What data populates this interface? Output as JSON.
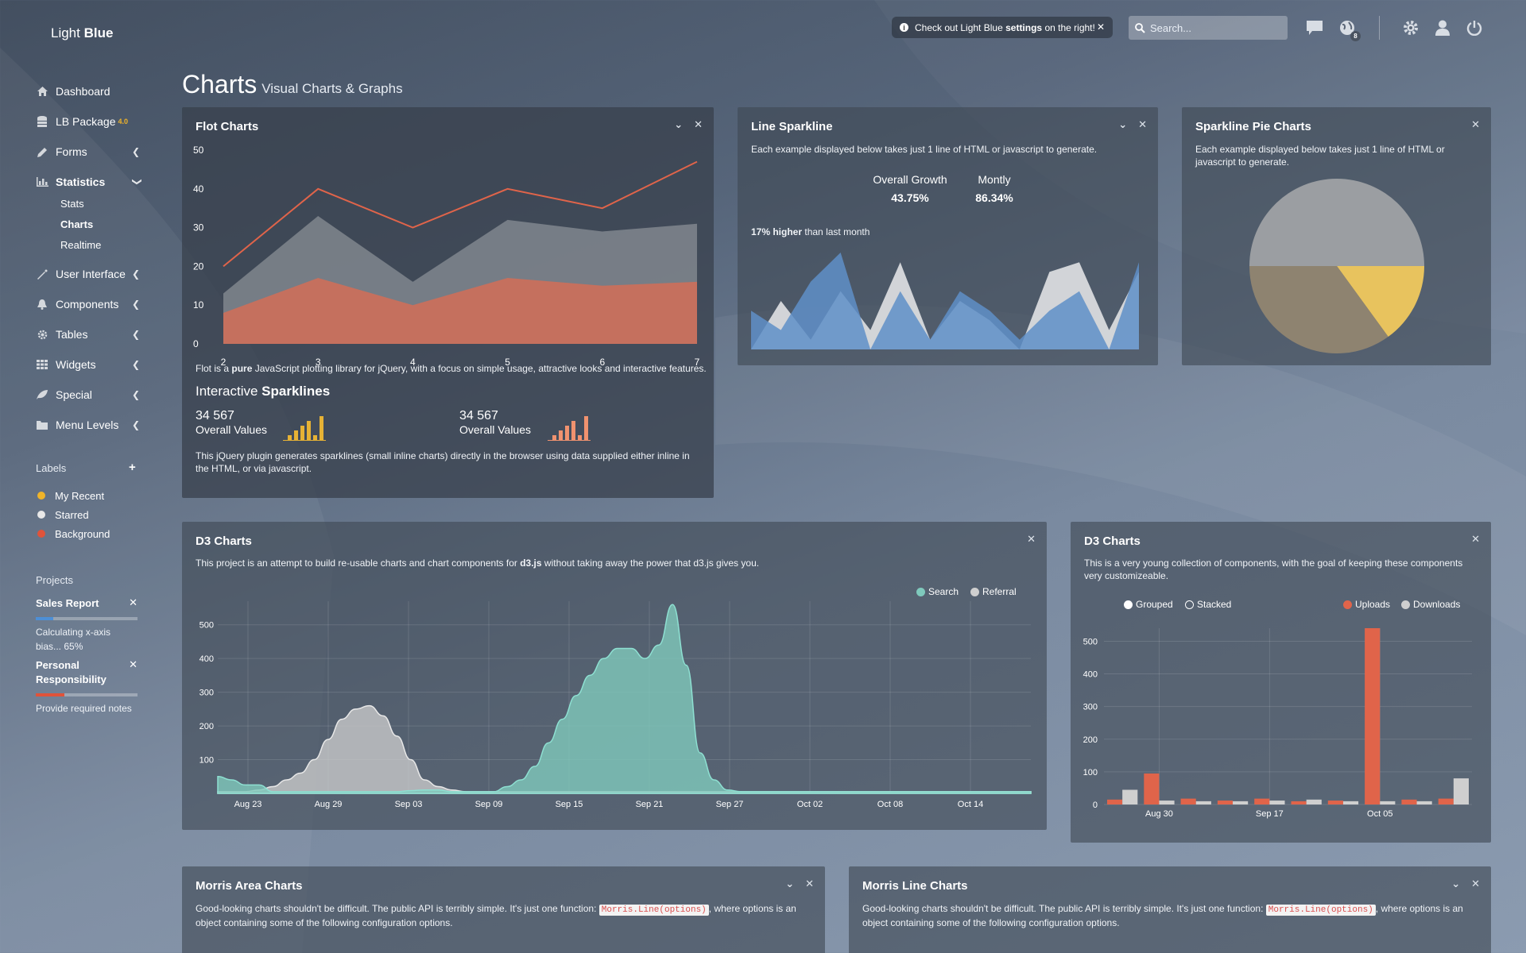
{
  "app": {
    "brand_light": "Light",
    "brand_bold": "Blue"
  },
  "header": {
    "notice_prefix": "Check out Light Blue",
    "notice_bold": "settings",
    "notice_suffix": "on the right!",
    "search_placeholder": "Search...",
    "notification_count": "8"
  },
  "sidebar": {
    "items": [
      {
        "label": "Dashboard",
        "icon": "home-icon"
      },
      {
        "label": "LB Package",
        "sup": "4.0",
        "icon": "database-icon"
      },
      {
        "label": "Forms",
        "icon": "pencil-icon"
      },
      {
        "label": "Statistics",
        "icon": "bar-chart-icon"
      },
      {
        "label": "User Interface",
        "icon": "magic-icon"
      },
      {
        "label": "Components",
        "icon": "bell-icon"
      },
      {
        "label": "Tables",
        "icon": "gear-icon"
      },
      {
        "label": "Widgets",
        "icon": "grid-icon"
      },
      {
        "label": "Special",
        "icon": "leaf-icon"
      },
      {
        "label": "Menu Levels",
        "icon": "folder-icon"
      }
    ],
    "statistics_sub": [
      "Stats",
      "Charts",
      "Realtime"
    ],
    "labels_title": "Labels",
    "labels": [
      {
        "label": "My Recent",
        "color": "#f0b429"
      },
      {
        "label": "Starred",
        "color": "#e8e8e8"
      },
      {
        "label": "Background",
        "color": "#e0533a"
      }
    ],
    "projects_title": "Projects",
    "projects": [
      {
        "title": "Sales Report",
        "desc": "Calculating x-axis bias... 65%",
        "progress": 0.17,
        "color": "#4d8fd6"
      },
      {
        "title": "Personal Responsibility",
        "desc": "Provide required notes",
        "progress": 0.28,
        "color": "#e0533a"
      }
    ]
  },
  "page": {
    "title": "Charts",
    "subtitle": "Visual Charts & Graphs"
  },
  "flot": {
    "title": "Flot Charts",
    "desc_pre": "Flot is a",
    "desc_bold": "pure",
    "desc_post": "JavaScript plotting library for jQuery, with a focus on simple usage, attractive looks and interactive features.",
    "sparklines_light": "Interactive",
    "sparklines_bold": "Sparklines",
    "stat1_value": "34 567",
    "stat1_label": "Overall Values",
    "stat2_value": "34 567",
    "stat2_label": "Overall Values",
    "footer": "This jQuery plugin generates sparklines (small inline charts) directly in the browser using data supplied either inline in the HTML, or via javascript."
  },
  "line_sparkline": {
    "title": "Line Sparkline",
    "desc": "Each example displayed below takes just 1 line of HTML or javascript to generate.",
    "growth_label": "Overall Growth",
    "growth_value": "43.75%",
    "monthly_label": "Montly",
    "monthly_value": "86.34%",
    "higher_bold": "17% higher",
    "higher_rest": "than last month"
  },
  "pie_panel": {
    "title": "Sparkline Pie Charts",
    "desc": "Each example displayed below takes just 1 line of HTML or javascript to generate."
  },
  "d3_area": {
    "title": "D3 Charts",
    "desc_pre": "This project is an attempt to build re-usable charts and chart components for",
    "desc_bold": "d3.js",
    "desc_post": "without taking away the power that d3.js gives you.",
    "legend": [
      {
        "label": "Search",
        "color": "#7fc9bc"
      },
      {
        "label": "Referral",
        "color": "#cfcfcf"
      }
    ]
  },
  "d3_bar": {
    "title": "D3 Charts",
    "desc": "This is a very young collection of components, with the goal of keeping these components very customizeable.",
    "mode_grouped": "Grouped",
    "mode_stacked": "Stacked",
    "legend": [
      {
        "label": "Uploads",
        "color": "#e0644a"
      },
      {
        "label": "Downloads",
        "color": "#cfcfcf"
      }
    ]
  },
  "morris_area": {
    "title": "Morris Area Charts",
    "desc_pre": "Good-looking charts shouldn't be difficult. The public API is terribly simple. It's just one function:",
    "desc_code": "Morris.Line(options)",
    "desc_post": ", where options is an object containing some of the following configuration options."
  },
  "morris_line": {
    "title": "Morris Line Charts",
    "desc_pre": "Good-looking charts shouldn't be difficult. The public API is terribly simple. It's just one function:",
    "desc_code": "Morris.Line(options)",
    "desc_post": ", where options is an object containing some of the following configuration options."
  },
  "chart_data": [
    {
      "id": "flot",
      "type": "area",
      "x": [
        2,
        3,
        4,
        5,
        6,
        7
      ],
      "series": [
        {
          "values": [
            20,
            40,
            30,
            40,
            35,
            47
          ],
          "color": "#e0644a",
          "style": "line"
        },
        {
          "values": [
            13,
            33,
            16,
            32,
            29,
            31
          ],
          "color": "#8a8f96",
          "style": "area"
        },
        {
          "values": [
            8,
            17,
            10,
            17,
            15,
            16
          ],
          "color": "#c9705c",
          "style": "area"
        }
      ],
      "xlim": [
        2,
        7
      ],
      "ylim": [
        0,
        50
      ],
      "yticks": [
        0,
        10,
        20,
        30,
        40,
        50
      ]
    },
    {
      "id": "sparkline_bars_1",
      "type": "bar",
      "values": [
        1,
        2,
        3,
        4,
        1,
        5
      ],
      "color": "#e6b235"
    },
    {
      "id": "sparkline_bars_2",
      "type": "bar",
      "values": [
        1,
        2,
        3,
        4,
        1,
        5
      ],
      "color": "#f0926f"
    },
    {
      "id": "line_sparkline",
      "type": "area",
      "series": [
        {
          "values": [
            0,
            5,
            1,
            6,
            2,
            9,
            1,
            5,
            3,
            0,
            8,
            9,
            2,
            8
          ],
          "color": "#d9dbde"
        },
        {
          "values": [
            4,
            2,
            7,
            10,
            0,
            6,
            1,
            6,
            4,
            1,
            4,
            6,
            0,
            9
          ],
          "color": "#5f8fc8"
        }
      ],
      "ylim": [
        0,
        10
      ]
    },
    {
      "id": "sparkline_pie",
      "type": "pie",
      "values": [
        50,
        15,
        35
      ],
      "colors": [
        "#9b9ea2",
        "#e8c35e",
        "#8e8370"
      ]
    },
    {
      "id": "d3_area",
      "type": "area",
      "xticks": [
        "Aug 23",
        "Aug 29",
        "Sep 03",
        "Sep 09",
        "Sep 15",
        "Sep 21",
        "Sep 27",
        "Oct 02",
        "Oct 08",
        "Oct 14"
      ],
      "yticks": [
        100,
        200,
        300,
        400,
        500
      ],
      "ylim": [
        0,
        570
      ],
      "series": [
        {
          "name": "Search",
          "color": "#7fc9bc",
          "values": [
            50,
            40,
            25,
            25,
            5,
            5,
            5,
            5,
            5,
            5,
            5,
            5,
            5,
            5,
            8,
            10,
            10,
            5,
            5,
            5,
            5,
            20,
            40,
            80,
            150,
            220,
            290,
            350,
            400,
            430,
            430,
            400,
            440,
            560,
            380,
            120,
            40,
            10,
            5,
            5,
            5,
            5,
            5,
            5,
            5,
            5,
            5,
            5,
            5,
            5,
            5,
            5,
            5,
            5,
            5,
            5,
            5,
            5,
            5,
            5
          ]
        },
        {
          "name": "Referral",
          "color": "#cfcfcf",
          "values": [
            5,
            5,
            5,
            10,
            20,
            40,
            60,
            100,
            160,
            220,
            250,
            260,
            230,
            170,
            100,
            40,
            20,
            10,
            5,
            5,
            5,
            5,
            5,
            5,
            5,
            5,
            5,
            5,
            5,
            5,
            5,
            5,
            5,
            5,
            5,
            5,
            5,
            5,
            5,
            5,
            5,
            5,
            5,
            5,
            5,
            5,
            5,
            5,
            5,
            5,
            5,
            5,
            5,
            5,
            5,
            5,
            5,
            5,
            5,
            5
          ]
        }
      ]
    },
    {
      "id": "d3_bar",
      "type": "bar",
      "xticks": [
        "Aug 30",
        "Sep 17",
        "Oct 05"
      ],
      "yticks": [
        0,
        100,
        200,
        300,
        400,
        500
      ],
      "ylim": [
        0,
        540
      ],
      "series": [
        {
          "name": "Uploads",
          "color": "#e0644a",
          "values": [
            15,
            95,
            18,
            12,
            18,
            10,
            12,
            540,
            15,
            18
          ]
        },
        {
          "name": "Downloads",
          "color": "#cfcfcf",
          "values": [
            45,
            12,
            10,
            10,
            12,
            15,
            10,
            10,
            10,
            80
          ]
        }
      ]
    }
  ]
}
